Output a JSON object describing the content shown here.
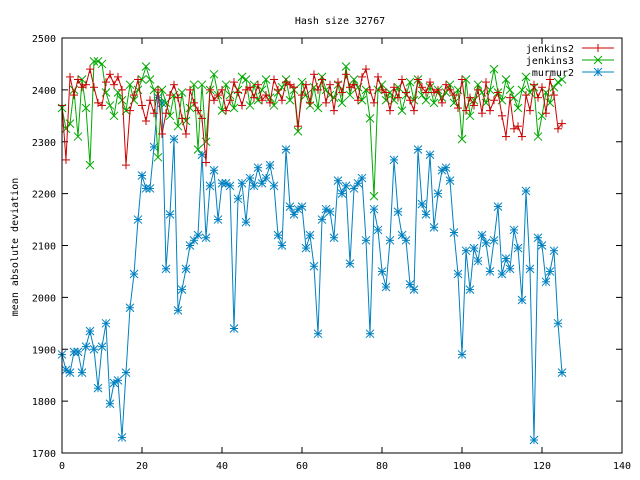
{
  "chart_data": {
    "type": "line",
    "title": "Hash size 32767",
    "xlabel": "",
    "ylabel": "mean absolute deviation",
    "xlim": [
      0,
      140
    ],
    "ylim": [
      1700,
      2500
    ],
    "xticks": [
      "0",
      "20",
      "40",
      "60",
      "80",
      "100",
      "120",
      "140"
    ],
    "yticks": [
      "1700",
      "1800",
      "1900",
      "2000",
      "2100",
      "2200",
      "2300",
      "2400",
      "2500"
    ],
    "grid": false,
    "legend_position": "top-right",
    "series": [
      {
        "name": "jenkins2",
        "color": "#cc0000",
        "marker": "plus",
        "values": [
          2370,
          2265,
          2425,
          2390,
          2420,
          2405,
          2410,
          2440,
          2405,
          2375,
          2370,
          2415,
          2430,
          2410,
          2425,
          2400,
          2255,
          2360,
          2390,
          2420,
          2370,
          2340,
          2380,
          2355,
          2400,
          2315,
          2355,
          2390,
          2410,
          2385,
          2345,
          2315,
          2400,
          2375,
          2360,
          2345,
          2260,
          2400,
          2380,
          2390,
          2400,
          2360,
          2380,
          2415,
          2395,
          2370,
          2400,
          2405,
          2385,
          2410,
          2380,
          2390,
          2375,
          2420,
          2400,
          2380,
          2415,
          2410,
          2405,
          2330,
          2390,
          2410,
          2375,
          2430,
          2400,
          2420,
          2375,
          2410,
          2360,
          2415,
          2395,
          2430,
          2405,
          2410,
          2380,
          2425,
          2440,
          2400,
          2375,
          2425,
          2400,
          2395,
          2360,
          2405,
          2385,
          2420,
          2395,
          2380,
          2360,
          2420,
          2405,
          2395,
          2415,
          2395,
          2400,
          2375,
          2410,
          2400,
          2390,
          2365,
          2420,
          2360,
          2385,
          2370,
          2400,
          2355,
          2415,
          2360,
          2380,
          2395,
          2350,
          2310,
          2385,
          2325,
          2330,
          2310,
          2390,
          2360,
          2410,
          2385,
          2405,
          2355,
          2420,
          2390,
          2325,
          2335
        ]
      },
      {
        "name": "jenkins3",
        "color": "#00aa00",
        "marker": "cross",
        "values": [
          2365,
          2325,
          2335,
          2400,
          2310,
          2420,
          2365,
          2255,
          2455,
          2455,
          2450,
          2395,
          2370,
          2350,
          2395,
          2380,
          2360,
          2410,
          2380,
          2400,
          2420,
          2445,
          2420,
          2400,
          2270,
          2400,
          2375,
          2350,
          2390,
          2330,
          2395,
          2340,
          2365,
          2410,
          2285,
          2410,
          2300,
          2400,
          2430,
          2390,
          2360,
          2410,
          2390,
          2365,
          2400,
          2425,
          2420,
          2370,
          2410,
          2380,
          2400,
          2420,
          2385,
          2370,
          2395,
          2405,
          2420,
          2380,
          2400,
          2320,
          2415,
          2390,
          2370,
          2405,
          2365,
          2425,
          2400,
          2390,
          2385,
          2410,
          2375,
          2445,
          2390,
          2420,
          2405,
          2380,
          2400,
          2345,
          2195,
          2400,
          2410,
          2380,
          2395,
          2380,
          2405,
          2360,
          2390,
          2415,
          2380,
          2420,
          2390,
          2380,
          2405,
          2375,
          2400,
          2385,
          2395,
          2410,
          2375,
          2400,
          2305,
          2420,
          2350,
          2380,
          2410,
          2395,
          2375,
          2400,
          2440,
          2395,
          2380,
          2420,
          2400,
          2385,
          2365,
          2400,
          2425,
          2395,
          2405,
          2310,
          2350,
          2395,
          2375,
          2405,
          2415,
          2420
        ]
      },
      {
        "name": "murmur2",
        "color": "#0080c0",
        "marker": "star",
        "values": [
          1890,
          1860,
          1855,
          1895,
          1895,
          1855,
          1905,
          1935,
          1900,
          1825,
          1905,
          1950,
          1795,
          1835,
          1840,
          1730,
          1855,
          1980,
          2045,
          2150,
          2235,
          2210,
          2210,
          2290,
          2385,
          2375,
          2055,
          2160,
          2305,
          1975,
          2015,
          2055,
          2100,
          2110,
          2120,
          2275,
          2115,
          2215,
          2245,
          2150,
          2220,
          2220,
          2215,
          1940,
          2190,
          2220,
          2145,
          2230,
          2215,
          2250,
          2220,
          2230,
          2255,
          2215,
          2120,
          2100,
          2285,
          2175,
          2160,
          2170,
          2175,
          2095,
          2120,
          2060,
          1930,
          2150,
          2170,
          2165,
          2115,
          2225,
          2200,
          2215,
          2065,
          2210,
          2220,
          2230,
          2110,
          1930,
          2170,
          2130,
          2050,
          2020,
          2110,
          2265,
          2165,
          2120,
          2110,
          2025,
          2015,
          2285,
          2180,
          2160,
          2275,
          2135,
          2200,
          2245,
          2250,
          2225,
          2125,
          2045,
          1890,
          2090,
          2015,
          2095,
          2070,
          2120,
          2105,
          2050,
          2110,
          2175,
          2045,
          2075,
          2055,
          2130,
          2095,
          1995,
          2205,
          2055,
          1725,
          2115,
          2100,
          2030,
          2050,
          2090,
          1950,
          1855
        ]
      }
    ]
  }
}
